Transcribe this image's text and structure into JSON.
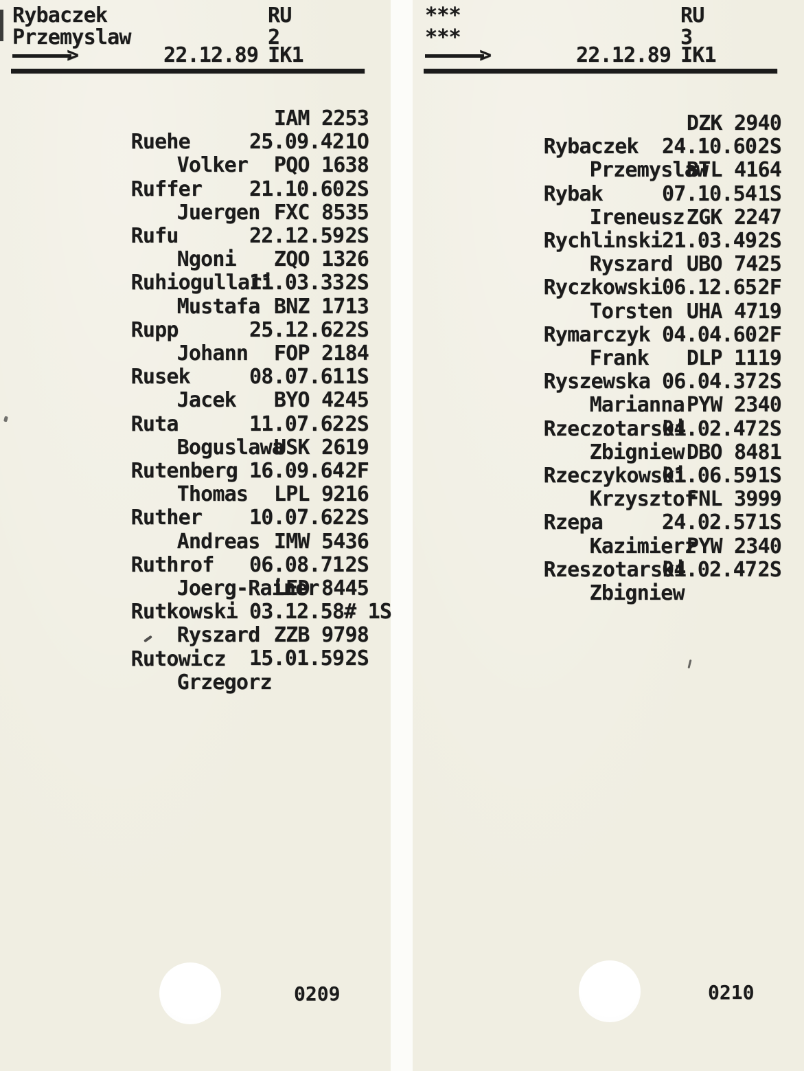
{
  "colors": {
    "paper": "#f0eee2",
    "gap": "#fcfcf9",
    "ink": "#1b1b1b"
  },
  "cards": [
    {
      "header": {
        "line1": "Rybaczek",
        "line2": "Przemyslaw",
        "register": "RU",
        "sheet": "2",
        "date": "22.12.89",
        "code": "IK1",
        "arrow_head": ">"
      },
      "entries": [
        {
          "surname": "Ruehe",
          "given": "Volker",
          "code": "IAM 2253",
          "birthdate": "25.09.42",
          "flag": "1O"
        },
        {
          "surname": "Ruffer",
          "given": "Juergen",
          "code": "PQO 1638",
          "birthdate": "21.10.60",
          "flag": "2S"
        },
        {
          "surname": "Rufu",
          "given": "Ngoni",
          "code": "FXC 8535",
          "birthdate": "22.12.59",
          "flag": "2S"
        },
        {
          "surname": "Ruhiogullari",
          "given": "Mustafa",
          "code": "ZQO 1326",
          "birthdate": "11.03.33",
          "flag": "2S"
        },
        {
          "surname": "Rupp",
          "given": "Johann",
          "code": "BNZ 1713",
          "birthdate": "25.12.62",
          "flag": "2S"
        },
        {
          "surname": "Rusek",
          "given": "Jacek",
          "code": "FOP 2184",
          "birthdate": "08.07.61",
          "flag": "1S"
        },
        {
          "surname": "Ruta",
          "given": "Boguslawa",
          "code": "BYO 4245",
          "birthdate": "11.07.62",
          "flag": "2S"
        },
        {
          "surname": "Rutenberg",
          "given": "Thomas",
          "code": "USK 2619",
          "birthdate": "16.09.64",
          "flag": "2F"
        },
        {
          "surname": "Ruther",
          "given": "Andreas",
          "code": "LPL 9216",
          "birthdate": "10.07.62",
          "flag": "2S"
        },
        {
          "surname": "Ruthrof",
          "given": "Joerg-Rainer",
          "code": "IMW 5436",
          "birthdate": "06.08.71",
          "flag": "2S"
        },
        {
          "surname": "Rutkowski",
          "given": "Ryszard",
          "code": "LED 8445",
          "birthdate": "03.12.58",
          "flag": "# 1S"
        },
        {
          "surname": "Rutowicz",
          "given": "Grzegorz",
          "code": "ZZB 9798",
          "birthdate": "15.01.59",
          "flag": "2S"
        }
      ],
      "page_number": "0209"
    },
    {
      "header": {
        "line1": "***",
        "line2": "***",
        "register": "RU",
        "sheet": "3",
        "date": "22.12.89",
        "code": "IK1",
        "arrow_head": ">"
      },
      "entries": [
        {
          "surname": "Rybaczek",
          "given": "Przemyslaw",
          "code": "DZK 2940",
          "birthdate": "24.10.60",
          "flag": "2S"
        },
        {
          "surname": "Rybak",
          "given": "Ireneusz",
          "code": "BTL 4164",
          "birthdate": "07.10.54",
          "flag": "1S"
        },
        {
          "surname": "Rychlinski",
          "given": "Ryszard",
          "code": "ZGK 2247",
          "birthdate": "21.03.49",
          "flag": "2S"
        },
        {
          "surname": "Ryczkowski",
          "given": "Torsten",
          "code": "UBO 7425",
          "birthdate": "06.12.65",
          "flag": "2F"
        },
        {
          "surname": "Rymarczyk",
          "given": "Frank",
          "code": "UHA 4719",
          "birthdate": "04.04.60",
          "flag": "2F"
        },
        {
          "surname": "Ryszewska",
          "given": "Marianna",
          "code": "DLP 1119",
          "birthdate": "06.04.37",
          "flag": "2S"
        },
        {
          "surname": "Rzeczotarski",
          "given": "Zbigniew",
          "code": "PYW 2340",
          "birthdate": "04.02.47",
          "flag": "2S"
        },
        {
          "surname": "Rzeczykowski",
          "given": "Krzysztof",
          "code": "DBO 8481",
          "birthdate": "01.06.59",
          "flag": "1S"
        },
        {
          "surname": "Rzepa",
          "given": "Kazimierz",
          "code": "FNL 3999",
          "birthdate": "24.02.57",
          "flag": "1S"
        },
        {
          "surname": "Rzeszotarski",
          "given": "Zbigniew",
          "code": "PYW 2340",
          "birthdate": "04.02.47",
          "flag": "2S"
        }
      ],
      "page_number": "0210"
    }
  ]
}
